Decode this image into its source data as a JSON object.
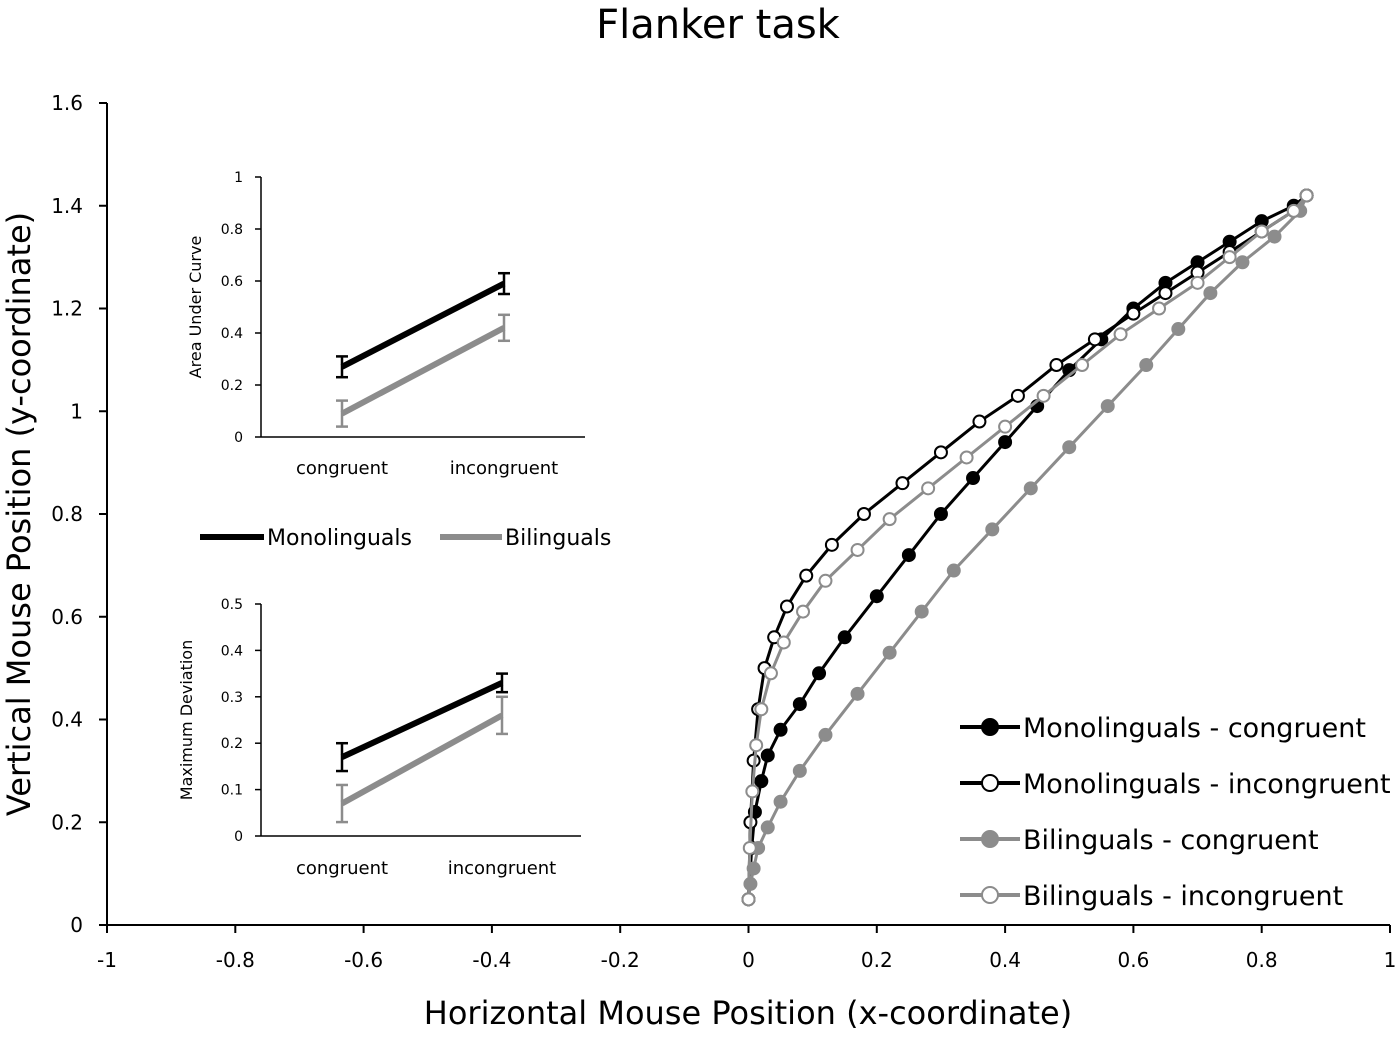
{
  "chart_data": [
    {
      "type": "scatter",
      "title": "Flanker task",
      "xlabel": "Horizontal Mouse Position (x-coordinate)",
      "ylabel": "Vertical Mouse Position (y-coordinate)",
      "xlim": [
        -1,
        1
      ],
      "ylim": [
        0,
        1.6
      ],
      "x_ticks": [
        -1,
        -0.8,
        -0.6,
        -0.4,
        -0.2,
        0,
        0.2,
        0.4,
        0.6,
        0.8,
        1
      ],
      "x_tick_labels": [
        "-1",
        "-0.8",
        "-0.6",
        "-0.4",
        "-0.2",
        "0",
        "0.2",
        "0.4",
        "0.6",
        "0.8",
        "1"
      ],
      "y_ticks": [
        0,
        0.2,
        0.4,
        0.6,
        0.8,
        1,
        1.2,
        1.4,
        1.6
      ],
      "y_tick_labels": [
        "0",
        "0.2",
        "0.4",
        "0.6",
        "0.8",
        "1",
        "1.2",
        "1.4",
        "1.6"
      ],
      "grid": false,
      "legend_position": "bottom-right",
      "series": [
        {
          "name": "Monolinguals - congruent",
          "color": "#000000",
          "marker": "filled",
          "x": [
            0,
            0.005,
            0.01,
            0.02,
            0.03,
            0.05,
            0.08,
            0.11,
            0.15,
            0.2,
            0.25,
            0.3,
            0.35,
            0.4,
            0.45,
            0.5,
            0.55,
            0.6,
            0.65,
            0.7,
            0.75,
            0.8,
            0.85,
            0.87
          ],
          "y": [
            0.05,
            0.15,
            0.22,
            0.28,
            0.33,
            0.38,
            0.43,
            0.49,
            0.56,
            0.64,
            0.72,
            0.8,
            0.87,
            0.94,
            1.01,
            1.08,
            1.14,
            1.2,
            1.25,
            1.29,
            1.33,
            1.37,
            1.4,
            1.42
          ]
        },
        {
          "name": "Monolinguals - incongruent",
          "color": "#000000",
          "marker": "open",
          "x": [
            0,
            0.003,
            0.008,
            0.015,
            0.025,
            0.04,
            0.06,
            0.09,
            0.13,
            0.18,
            0.24,
            0.3,
            0.36,
            0.42,
            0.48,
            0.54,
            0.6,
            0.65,
            0.7,
            0.75,
            0.8,
            0.85,
            0.87
          ],
          "y": [
            0.05,
            0.2,
            0.32,
            0.42,
            0.5,
            0.56,
            0.62,
            0.68,
            0.74,
            0.8,
            0.86,
            0.92,
            0.98,
            1.03,
            1.09,
            1.14,
            1.19,
            1.23,
            1.27,
            1.31,
            1.35,
            1.39,
            1.42
          ]
        },
        {
          "name": "Bilinguals - congruent",
          "color": "#8c8c8c",
          "marker": "filled",
          "x": [
            0,
            0.003,
            0.008,
            0.015,
            0.03,
            0.05,
            0.08,
            0.12,
            0.17,
            0.22,
            0.27,
            0.32,
            0.38,
            0.44,
            0.5,
            0.56,
            0.62,
            0.67,
            0.72,
            0.77,
            0.82,
            0.86,
            0.87
          ],
          "y": [
            0.05,
            0.08,
            0.11,
            0.15,
            0.19,
            0.24,
            0.3,
            0.37,
            0.45,
            0.53,
            0.61,
            0.69,
            0.77,
            0.85,
            0.93,
            1.01,
            1.09,
            1.16,
            1.23,
            1.29,
            1.34,
            1.39,
            1.42
          ]
        },
        {
          "name": "Bilinguals - incongruent",
          "color": "#8c8c8c",
          "marker": "open",
          "x": [
            0,
            0.002,
            0.006,
            0.012,
            0.02,
            0.035,
            0.055,
            0.085,
            0.12,
            0.17,
            0.22,
            0.28,
            0.34,
            0.4,
            0.46,
            0.52,
            0.58,
            0.64,
            0.7,
            0.75,
            0.8,
            0.85,
            0.87
          ],
          "y": [
            0.05,
            0.15,
            0.26,
            0.35,
            0.42,
            0.49,
            0.55,
            0.61,
            0.67,
            0.73,
            0.79,
            0.85,
            0.91,
            0.97,
            1.03,
            1.09,
            1.15,
            1.2,
            1.25,
            1.3,
            1.35,
            1.39,
            1.42
          ]
        }
      ]
    },
    {
      "type": "line",
      "title": "",
      "xlabel": "",
      "ylabel": "Area Under Curve",
      "categories": [
        "congruent",
        "incongruent"
      ],
      "ylim": [
        0,
        1
      ],
      "y_ticks": [
        0,
        0.2,
        0.4,
        0.6,
        0.8,
        1
      ],
      "y_tick_labels": [
        "0",
        "0.2",
        "0.4",
        "0.6",
        "0.8",
        "1"
      ],
      "series": [
        {
          "name": "Monolinguals",
          "color": "#000000",
          "values": [
            0.27,
            0.59
          ],
          "errors": [
            0.04,
            0.04
          ]
        },
        {
          "name": "Bilinguals",
          "color": "#8c8c8c",
          "values": [
            0.09,
            0.42
          ],
          "errors": [
            0.05,
            0.05
          ]
        }
      ]
    },
    {
      "type": "line",
      "title": "",
      "xlabel": "",
      "ylabel": "Maximum Deviation",
      "categories": [
        "congruent",
        "incongruent"
      ],
      "ylim": [
        0,
        0.5
      ],
      "y_ticks": [
        0,
        0.1,
        0.2,
        0.3,
        0.4,
        0.5
      ],
      "y_tick_labels": [
        "0",
        "0.1",
        "0.2",
        "0.3",
        "0.4",
        "0.5"
      ],
      "series": [
        {
          "name": "Monolinguals",
          "color": "#000000",
          "values": [
            0.17,
            0.33
          ],
          "errors": [
            0.03,
            0.02
          ]
        },
        {
          "name": "Bilinguals",
          "color": "#8c8c8c",
          "values": [
            0.07,
            0.26
          ],
          "errors": [
            0.04,
            0.04
          ]
        }
      ]
    }
  ],
  "inset_legend": {
    "items": [
      {
        "label": "Monolinguals",
        "color": "#000000"
      },
      {
        "label": "Bilinguals",
        "color": "#8c8c8c"
      }
    ]
  }
}
